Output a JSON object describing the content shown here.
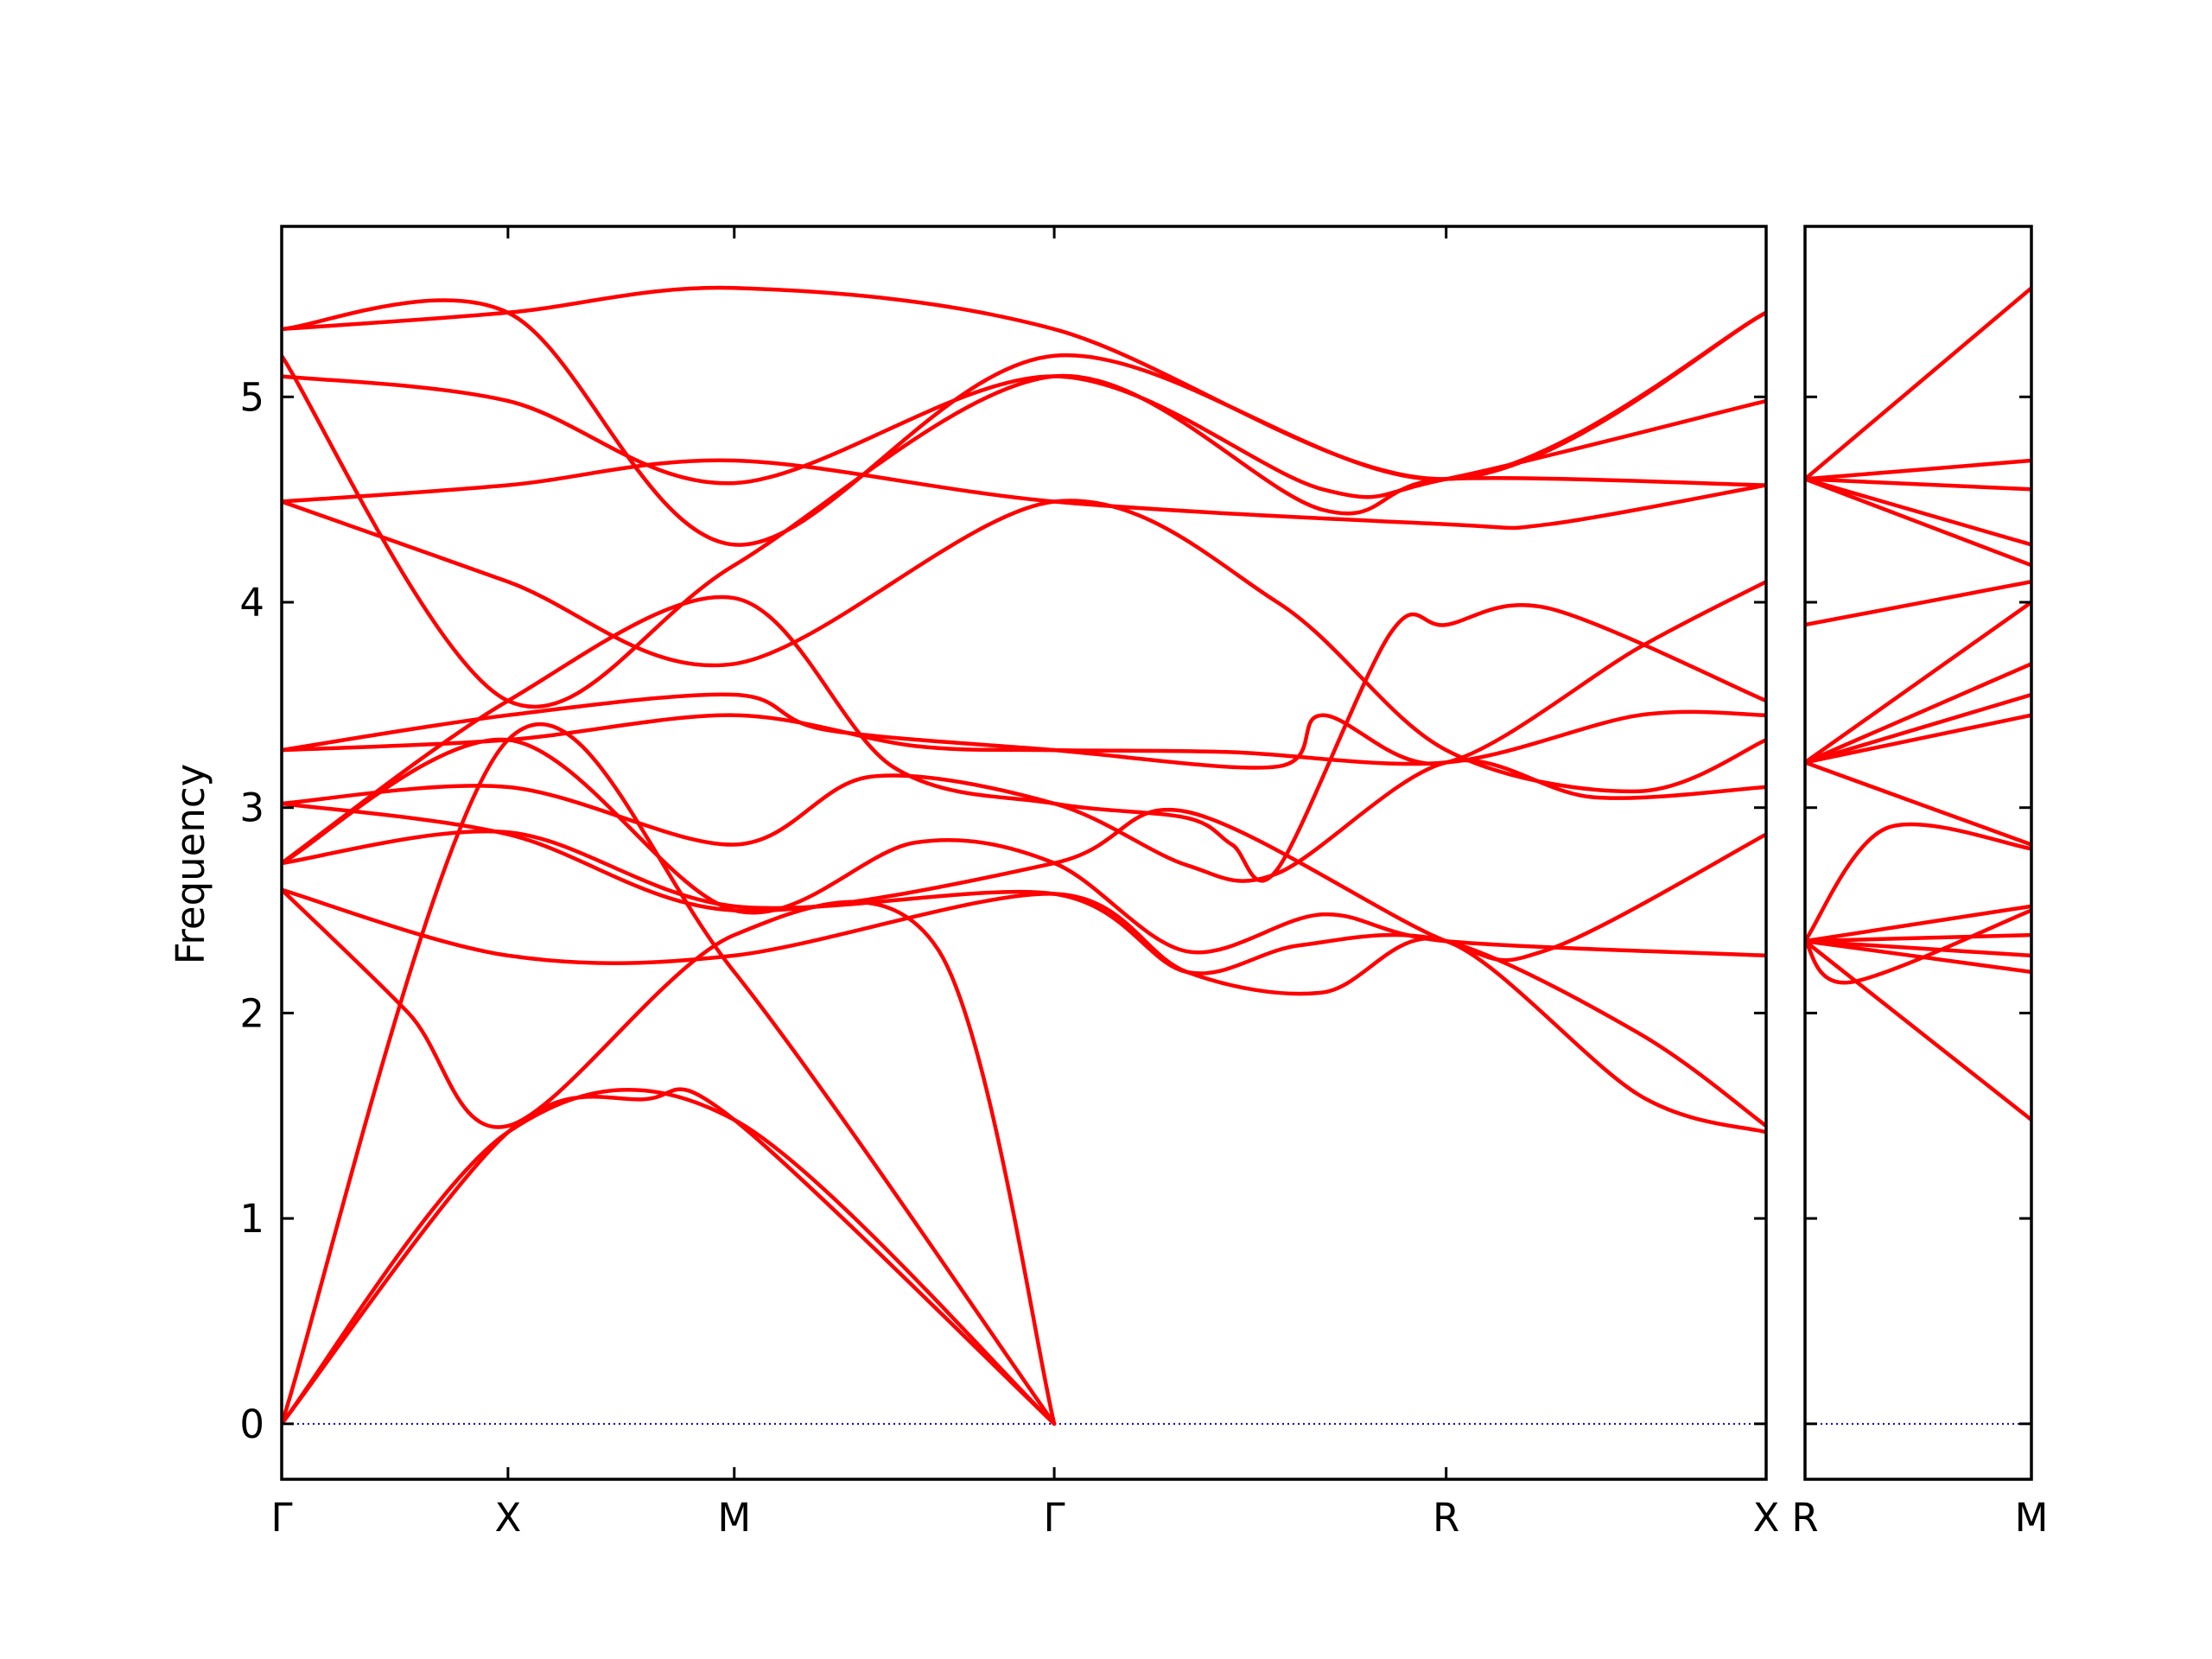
{
  "chart_data": {
    "type": "line",
    "ylabel": "Frequency",
    "yticks": [
      "0",
      "1",
      "2",
      "3",
      "4",
      "5"
    ],
    "ylim": [
      -0.27,
      5.83
    ],
    "colors": {
      "bands": "#ff0000",
      "zero_line": "#0000cc",
      "frame": "#000000"
    },
    "zero_line": {
      "y": 0,
      "style": "dotted"
    },
    "panels": [
      {
        "xticks": [
          {
            "label": "Γ",
            "x": 0.0
          },
          {
            "label": "X",
            "x": 0.5
          },
          {
            "label": "M",
            "x": 1.0
          },
          {
            "label": "Γ",
            "x": 1.707
          },
          {
            "label": "R",
            "x": 2.573
          },
          {
            "label": "X",
            "x": 3.28
          }
        ],
        "xlim": [
          0,
          3.28
        ],
        "bands": [
          [
            [
              0,
              0
            ],
            [
              0.5,
              1.42
            ],
            [
              1.0,
              1.48
            ],
            [
              1.707,
              0
            ]
          ],
          [
            [
              0,
              0
            ],
            [
              0.5,
              1.42
            ],
            [
              0.8,
              1.58
            ],
            [
              1.0,
              1.48
            ],
            [
              1.707,
              0
            ]
          ],
          [
            [
              0,
              0
            ],
            [
              0.5,
              3.33
            ],
            [
              1.0,
              2.2
            ],
            [
              1.707,
              0
            ]
          ],
          [
            [
              0,
              2.6
            ],
            [
              0.28,
              2.0
            ],
            [
              0.5,
              1.45
            ],
            [
              1.0,
              2.38
            ],
            [
              1.45,
              2.31
            ],
            [
              1.707,
              0
            ]
          ],
          [
            [
              0,
              2.6
            ],
            [
              0.5,
              2.28
            ],
            [
              1.0,
              2.28
            ],
            [
              1.707,
              2.58
            ],
            [
              2.0,
              2.2
            ],
            [
              2.3,
              2.1
            ],
            [
              2.573,
              2.35
            ],
            [
              3.0,
              1.6
            ],
            [
              3.28,
              1.42
            ]
          ],
          [
            [
              0,
              2.73
            ],
            [
              0.5,
              2.88
            ],
            [
              1.0,
              2.52
            ],
            [
              1.707,
              2.58
            ],
            [
              2.0,
              2.2
            ],
            [
              2.25,
              2.33
            ],
            [
              2.573,
              2.35
            ],
            [
              3.0,
              1.9
            ],
            [
              3.28,
              1.45
            ]
          ],
          [
            [
              0,
              2.73
            ],
            [
              0.5,
              3.33
            ],
            [
              1.0,
              2.5
            ],
            [
              1.4,
              2.83
            ],
            [
              1.707,
              2.73
            ],
            [
              2.0,
              2.3
            ],
            [
              2.3,
              2.48
            ],
            [
              2.573,
              2.35
            ],
            [
              3.28,
              2.28
            ]
          ],
          [
            [
              0,
              3.02
            ],
            [
              0.5,
              2.87
            ],
            [
              1.0,
              2.5
            ],
            [
              1.707,
              2.73
            ],
            [
              2.0,
              2.98
            ],
            [
              2.573,
              2.35
            ],
            [
              2.8,
              2.31
            ],
            [
              3.28,
              2.87
            ]
          ],
          [
            [
              0,
              3.02
            ],
            [
              0.5,
              3.1
            ],
            [
              1.0,
              2.82
            ],
            [
              1.3,
              3.15
            ],
            [
              1.707,
              3.02
            ],
            [
              2.0,
              2.72
            ],
            [
              2.2,
              2.68
            ],
            [
              2.573,
              3.22
            ],
            [
              2.9,
              3.05
            ],
            [
              3.28,
              3.1
            ]
          ],
          [
            [
              0,
              3.28
            ],
            [
              0.5,
              3.33
            ],
            [
              1.0,
              3.45
            ],
            [
              1.4,
              3.3
            ],
            [
              1.707,
              3.28
            ],
            [
              2.1,
              3.27
            ],
            [
              2.573,
              3.22
            ],
            [
              3.0,
              3.45
            ],
            [
              3.28,
              3.45
            ]
          ],
          [
            [
              0,
              3.28
            ],
            [
              0.5,
              3.45
            ],
            [
              1.0,
              3.55
            ],
            [
              1.2,
              3.38
            ],
            [
              1.707,
              3.28
            ],
            [
              2.2,
              3.2
            ],
            [
              2.3,
              3.45
            ],
            [
              2.573,
              3.22
            ],
            [
              3.0,
              3.78
            ],
            [
              3.28,
              4.1
            ]
          ],
          [
            [
              0,
              2.73
            ],
            [
              0.5,
              3.52
            ],
            [
              1.0,
              4.02
            ],
            [
              1.35,
              3.2
            ],
            [
              1.707,
              3.02
            ],
            [
              2.0,
              2.95
            ],
            [
              2.1,
              2.82
            ],
            [
              2.2,
              2.7
            ],
            [
              2.45,
              3.85
            ],
            [
              2.573,
              3.89
            ],
            [
              2.8,
              3.97
            ],
            [
              3.28,
              3.52
            ]
          ],
          [
            [
              0,
              4.49
            ],
            [
              0.5,
              4.57
            ],
            [
              1.0,
              4.69
            ],
            [
              1.707,
              4.49
            ],
            [
              2.573,
              4.38
            ],
            [
              2.8,
              4.38
            ],
            [
              3.28,
              4.57
            ]
          ],
          [
            [
              0,
              4.49
            ],
            [
              0.5,
              4.1
            ],
            [
              1.0,
              3.7
            ],
            [
              1.707,
              4.49
            ],
            [
              2.2,
              4.0
            ],
            [
              2.573,
              3.28
            ],
            [
              3.0,
              3.08
            ],
            [
              3.28,
              3.33
            ]
          ],
          [
            [
              0,
              5.1
            ],
            [
              0.5,
              4.98
            ],
            [
              1.0,
              4.58
            ],
            [
              1.707,
              5.1
            ],
            [
              2.3,
              4.55
            ],
            [
              2.573,
              4.6
            ],
            [
              3.28,
              4.98
            ]
          ],
          [
            [
              0,
              5.2
            ],
            [
              0.5,
              3.52
            ],
            [
              1.0,
              4.18
            ],
            [
              1.707,
              5.1
            ],
            [
              2.3,
              4.45
            ],
            [
              2.573,
              4.6
            ],
            [
              3.28,
              4.57
            ]
          ],
          [
            [
              0,
              5.33
            ],
            [
              0.5,
              5.41
            ],
            [
              1.0,
              4.28
            ],
            [
              1.707,
              5.2
            ],
            [
              2.573,
              4.6
            ],
            [
              3.28,
              5.41
            ]
          ],
          [
            [
              0,
              5.33
            ],
            [
              0.5,
              5.41
            ],
            [
              1.0,
              5.53
            ],
            [
              1.707,
              5.33
            ],
            [
              2.573,
              4.6
            ],
            [
              3.28,
              5.41
            ]
          ]
        ]
      },
      {
        "xticks": [
          {
            "label": "R",
            "x": 0.0
          },
          {
            "label": "M",
            "x": 0.5
          }
        ],
        "xlim": [
          0,
          0.5
        ],
        "bands": [
          [
            [
              0,
              2.35
            ],
            [
              0.5,
              1.48
            ]
          ],
          [
            [
              0,
              2.35
            ],
            [
              0.5,
              2.2
            ]
          ],
          [
            [
              0,
              2.35
            ],
            [
              0.5,
              2.28
            ]
          ],
          [
            [
              0,
              2.35
            ],
            [
              0.5,
              2.38
            ]
          ],
          [
            [
              0,
              2.35
            ],
            [
              0.1,
              2.15
            ],
            [
              0.5,
              2.5
            ]
          ],
          [
            [
              0,
              2.35
            ],
            [
              0.5,
              2.52
            ]
          ],
          [
            [
              0,
              2.35
            ],
            [
              0.18,
              2.9
            ],
            [
              0.5,
              2.8
            ]
          ],
          [
            [
              0,
              3.22
            ],
            [
              0.5,
              2.82
            ]
          ],
          [
            [
              0,
              3.22
            ],
            [
              0.5,
              3.45
            ]
          ],
          [
            [
              0,
              3.22
            ],
            [
              0.5,
              3.55
            ]
          ],
          [
            [
              0,
              3.22
            ],
            [
              0.5,
              3.7
            ]
          ],
          [
            [
              0,
              3.22
            ],
            [
              0.5,
              4.0
            ]
          ],
          [
            [
              0,
              3.89
            ],
            [
              0.5,
              4.1
            ]
          ],
          [
            [
              0,
              4.6
            ],
            [
              0.5,
              4.18
            ]
          ],
          [
            [
              0,
              4.6
            ],
            [
              0.5,
              4.28
            ]
          ],
          [
            [
              0,
              4.6
            ],
            [
              0.5,
              4.55
            ]
          ],
          [
            [
              0,
              4.6
            ],
            [
              0.5,
              4.69
            ]
          ],
          [
            [
              0,
              4.6
            ],
            [
              0.5,
              5.53
            ]
          ]
        ]
      }
    ]
  }
}
